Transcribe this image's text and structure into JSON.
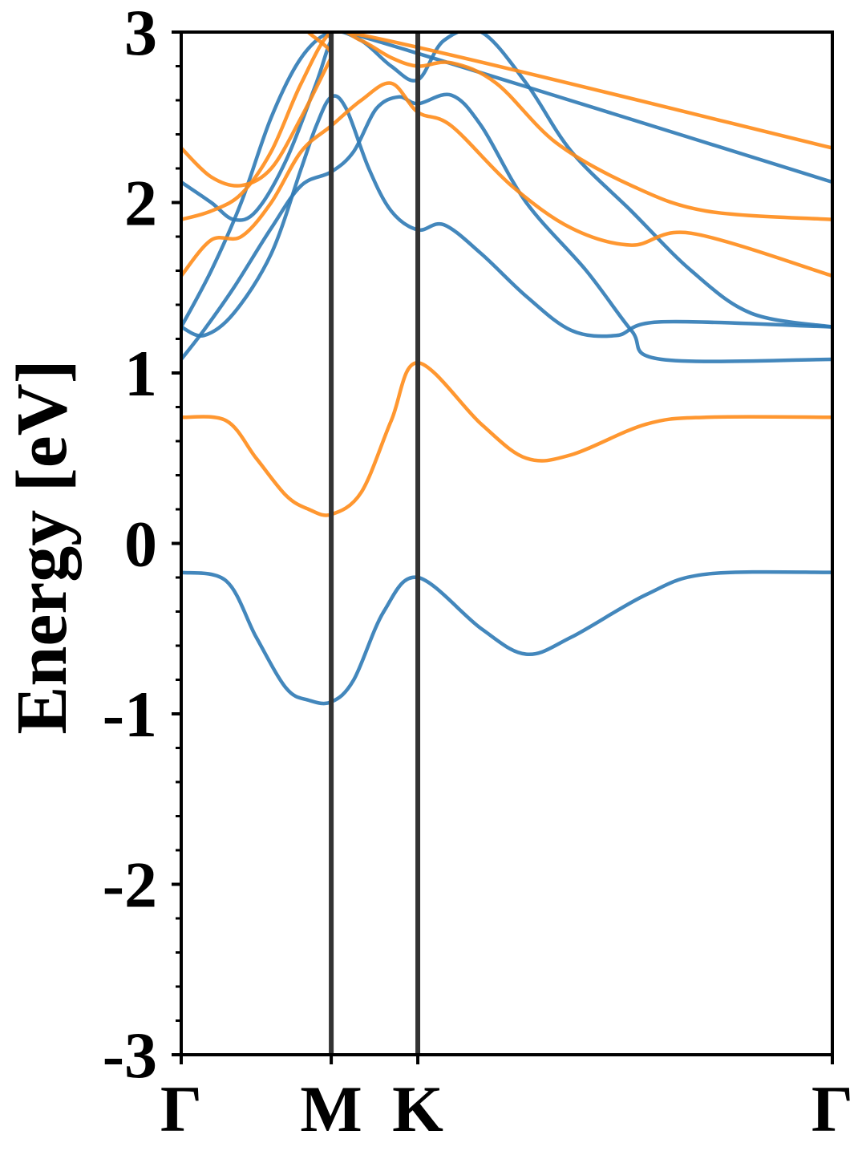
{
  "chart_data": {
    "type": "line",
    "ylabel": "Energy [eV]",
    "ylim": [
      -3,
      3
    ],
    "y_ticks": [
      "-3",
      "-2",
      "-1",
      "0",
      "1",
      "2",
      "3"
    ],
    "x_ticks": [
      "Γ",
      "M",
      "K",
      "Γ"
    ],
    "k_path_positions": [
      0,
      1,
      1.577,
      4.34
    ],
    "grid": false,
    "legend": "none",
    "colors": {
      "spin_up": "#2f7ab5",
      "spin_down": "#ff8c1a",
      "high_symmetry_line": "#333333",
      "axes": "#000000"
    },
    "series": [
      {
        "color_key": "spin_up",
        "points": [
          [
            0,
            -0.17
          ],
          [
            0.3,
            -0.22
          ],
          [
            0.5,
            -0.55
          ],
          [
            0.7,
            -0.85
          ],
          [
            0.85,
            -0.92
          ],
          [
            1,
            -0.93
          ],
          [
            1.15,
            -0.8
          ],
          [
            1.35,
            -0.4
          ],
          [
            1.577,
            -0.2
          ],
          [
            2,
            -0.5
          ],
          [
            2.3,
            -0.65
          ],
          [
            2.6,
            -0.55
          ],
          [
            3.1,
            -0.3
          ],
          [
            3.5,
            -0.18
          ],
          [
            4.34,
            -0.17
          ]
        ]
      },
      {
        "color_key": "spin_down",
        "points": [
          [
            0,
            0.74
          ],
          [
            0.3,
            0.72
          ],
          [
            0.5,
            0.5
          ],
          [
            0.7,
            0.28
          ],
          [
            0.85,
            0.2
          ],
          [
            1,
            0.17
          ],
          [
            1.2,
            0.3
          ],
          [
            1.4,
            0.72
          ],
          [
            1.577,
            1.06
          ],
          [
            2,
            0.7
          ],
          [
            2.3,
            0.5
          ],
          [
            2.6,
            0.52
          ],
          [
            3.1,
            0.7
          ],
          [
            3.5,
            0.74
          ],
          [
            4.34,
            0.74
          ]
        ]
      },
      {
        "color_key": "spin_up",
        "points": [
          [
            0,
            1.08
          ],
          [
            0.15,
            1.25
          ],
          [
            0.35,
            1.5
          ],
          [
            0.6,
            1.85
          ],
          [
            0.8,
            2.1
          ],
          [
            1,
            2.18
          ],
          [
            1.15,
            2.3
          ],
          [
            1.3,
            2.55
          ],
          [
            1.45,
            2.62
          ],
          [
            1.577,
            2.58
          ],
          [
            1.8,
            2.63
          ],
          [
            2.0,
            2.45
          ],
          [
            2.3,
            2.0
          ],
          [
            2.7,
            1.6
          ],
          [
            3.0,
            1.25
          ],
          [
            3.2,
            1.08
          ],
          [
            4.34,
            1.08
          ]
        ]
      },
      {
        "color_key": "spin_up",
        "points": [
          [
            0,
            1.27
          ],
          [
            0.15,
            1.22
          ],
          [
            0.35,
            1.35
          ],
          [
            0.6,
            1.7
          ],
          [
            0.8,
            2.2
          ],
          [
            0.9,
            2.45
          ],
          [
            1,
            2.62
          ],
          [
            1.1,
            2.55
          ],
          [
            1.25,
            2.2
          ],
          [
            1.4,
            1.95
          ],
          [
            1.577,
            1.84
          ],
          [
            1.75,
            1.87
          ],
          [
            2.0,
            1.7
          ],
          [
            2.3,
            1.45
          ],
          [
            2.6,
            1.25
          ],
          [
            2.9,
            1.22
          ],
          [
            3.2,
            1.3
          ],
          [
            4.34,
            1.27
          ]
        ]
      },
      {
        "color_key": "spin_up",
        "points": [
          [
            0,
            1.27
          ],
          [
            0.2,
            1.6
          ],
          [
            0.4,
            2.0
          ],
          [
            0.6,
            2.5
          ],
          [
            0.8,
            2.85
          ],
          [
            1,
            3.0
          ],
          [
            1.2,
            2.95
          ],
          [
            1.4,
            2.8
          ],
          [
            1.577,
            2.72
          ],
          [
            1.75,
            2.95
          ],
          [
            2.0,
            3.0
          ],
          [
            2.3,
            2.7
          ],
          [
            2.6,
            2.3
          ],
          [
            3.0,
            1.95
          ],
          [
            3.4,
            1.6
          ],
          [
            3.8,
            1.35
          ],
          [
            4.34,
            1.27
          ]
        ]
      },
      {
        "color_key": "spin_up",
        "points": [
          [
            0,
            2.12
          ],
          [
            0.2,
            2.0
          ],
          [
            0.35,
            1.9
          ],
          [
            0.5,
            1.95
          ],
          [
            0.7,
            2.25
          ],
          [
            0.9,
            2.7
          ],
          [
            1.0,
            2.95
          ],
          [
            1.1,
            3.0
          ],
          [
            4.34,
            2.12
          ]
        ]
      },
      {
        "color_key": "spin_down",
        "points": [
          [
            0,
            1.57
          ],
          [
            0.2,
            1.78
          ],
          [
            0.4,
            1.8
          ],
          [
            0.6,
            2.0
          ],
          [
            0.8,
            2.3
          ],
          [
            1,
            2.45
          ],
          [
            1.2,
            2.6
          ],
          [
            1.4,
            2.7
          ],
          [
            1.577,
            2.53
          ],
          [
            1.8,
            2.45
          ],
          [
            2.2,
            2.1
          ],
          [
            2.6,
            1.85
          ],
          [
            3.0,
            1.75
          ],
          [
            3.4,
            1.82
          ],
          [
            4.34,
            1.57
          ]
        ]
      },
      {
        "color_key": "spin_down",
        "points": [
          [
            0,
            1.9
          ],
          [
            0.2,
            1.95
          ],
          [
            0.4,
            2.05
          ],
          [
            0.6,
            2.3
          ],
          [
            0.8,
            2.7
          ],
          [
            1,
            3.0
          ],
          [
            1.2,
            2.95
          ],
          [
            1.4,
            2.85
          ],
          [
            1.577,
            2.8
          ],
          [
            1.8,
            2.82
          ],
          [
            2.1,
            2.7
          ],
          [
            2.5,
            2.35
          ],
          [
            3.0,
            2.1
          ],
          [
            3.5,
            1.95
          ],
          [
            4.34,
            1.9
          ]
        ]
      },
      {
        "color_key": "spin_down",
        "points": [
          [
            0,
            2.32
          ],
          [
            0.2,
            2.15
          ],
          [
            0.4,
            2.1
          ],
          [
            0.6,
            2.2
          ],
          [
            0.8,
            2.5
          ],
          [
            1.0,
            2.85
          ],
          [
            1.1,
            3.0
          ],
          [
            4.34,
            2.32
          ]
        ]
      }
    ]
  }
}
